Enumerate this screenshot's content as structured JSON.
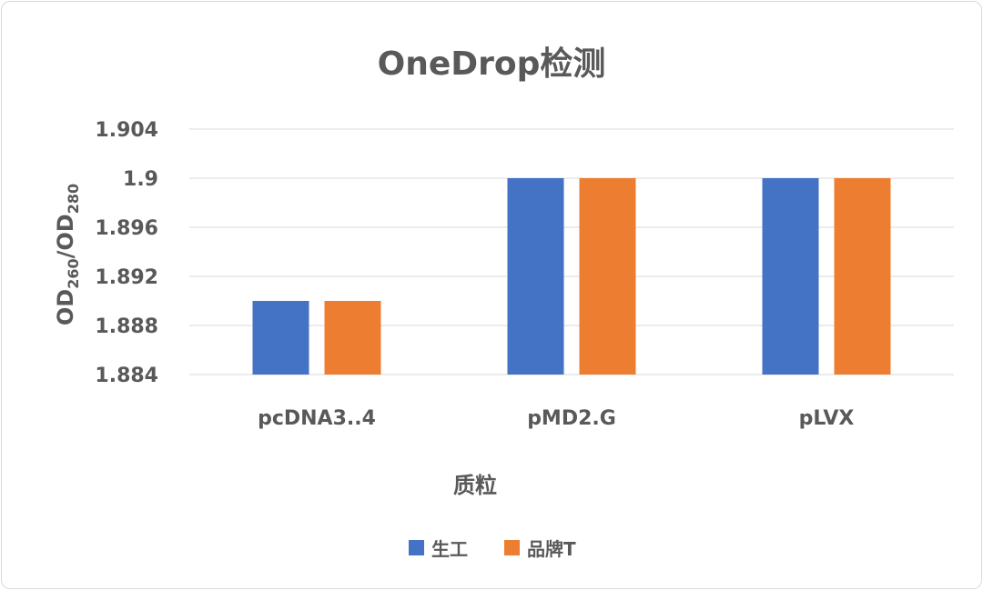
{
  "chart_data": {
    "type": "bar",
    "title": "OneDrop检测",
    "xlabel": "质粒",
    "ylabel": {
      "prefix1": "OD",
      "sub1": "260",
      "mid": "/OD",
      "sub2": "280"
    },
    "categories": [
      "pcDNA3..4",
      "pMD2.G",
      "pLVX"
    ],
    "series": [
      {
        "name": "生工",
        "color": "#4472c4",
        "values": [
          1.89,
          1.9,
          1.9
        ]
      },
      {
        "name": "品牌T",
        "color": "#ed7d31",
        "values": [
          1.89,
          1.9,
          1.9
        ]
      }
    ],
    "ylim": [
      1.884,
      1.904
    ],
    "yticks": [
      "1.904",
      "1.9",
      "1.896",
      "1.892",
      "1.888",
      "1.884"
    ],
    "grid": true,
    "legend": "bottom"
  }
}
